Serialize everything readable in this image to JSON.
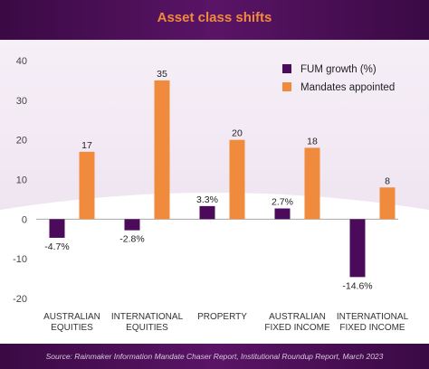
{
  "chart_data": {
    "type": "bar",
    "title": "Asset class shifts",
    "source": "Source: Rainmaker Information Mandate Chaser Report, Institutional Roundup Report, March 2023",
    "categories": [
      [
        "AUSTRALIAN",
        "EQUITIES"
      ],
      [
        "INTERNATIONAL",
        "EQUITIES"
      ],
      [
        "PROPERTY"
      ],
      [
        "AUSTRALIAN",
        "FIXED INCOME"
      ],
      [
        "INTERNATIONAL",
        "FIXED INCOME"
      ]
    ],
    "series": [
      {
        "name": "FUM growth (%)",
        "color": "#4b0a5a",
        "values": [
          -4.7,
          -2.8,
          3.3,
          2.7,
          -14.6
        ],
        "labels": [
          "-4.7%",
          "-2.8%",
          "3.3%",
          "2.7%",
          "-14.6%"
        ]
      },
      {
        "name": "Mandates appointed",
        "color": "#f08a3c",
        "values": [
          17,
          35,
          20,
          18,
          8
        ],
        "labels": [
          "17",
          "35",
          "20",
          "18",
          "8"
        ]
      }
    ],
    "ylim": [
      -20,
      40
    ],
    "yticks": [
      40,
      30,
      20,
      10,
      0,
      -10,
      -20
    ],
    "legend_position": "top-right",
    "grid": false
  }
}
